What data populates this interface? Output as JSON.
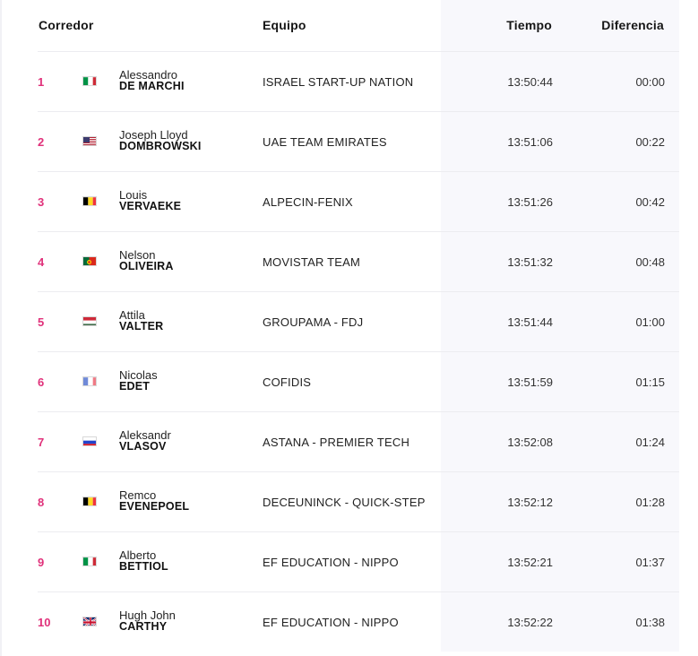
{
  "header": {
    "rider": "Corredor",
    "team": "Equipo",
    "time": "Tiempo",
    "gap": "Diferencia"
  },
  "colors": {
    "position": "#e0317a",
    "time_column_bg": "#f8f8fc"
  },
  "rows": [
    {
      "pos": "1",
      "flag": "italy-flag-icon",
      "first": "Alessandro",
      "last": "DE MARCHI",
      "team": "ISRAEL START-UP NATION",
      "time": "13:50:44",
      "gap": "00:00"
    },
    {
      "pos": "2",
      "flag": "usa-flag-icon",
      "first": "Joseph Lloyd",
      "last": "DOMBROWSKI",
      "team": "UAE TEAM EMIRATES",
      "time": "13:51:06",
      "gap": "00:22"
    },
    {
      "pos": "3",
      "flag": "belgium-flag-icon",
      "first": "Louis",
      "last": "VERVAEKE",
      "team": "ALPECIN-FENIX",
      "time": "13:51:26",
      "gap": "00:42"
    },
    {
      "pos": "4",
      "flag": "portugal-flag-icon",
      "first": "Nelson",
      "last": "OLIVEIRA",
      "team": "MOVISTAR TEAM",
      "time": "13:51:32",
      "gap": "00:48"
    },
    {
      "pos": "5",
      "flag": "hungary-flag-icon",
      "first": "Attila",
      "last": "VALTER",
      "team": "GROUPAMA - FDJ",
      "time": "13:51:44",
      "gap": "01:00"
    },
    {
      "pos": "6",
      "flag": "france-flag-icon",
      "first": "Nicolas",
      "last": "EDET",
      "team": "COFIDIS",
      "time": "13:51:59",
      "gap": "01:15"
    },
    {
      "pos": "7",
      "flag": "russia-flag-icon",
      "first": "Aleksandr",
      "last": "VLASOV",
      "team": "ASTANA - PREMIER TECH",
      "time": "13:52:08",
      "gap": "01:24"
    },
    {
      "pos": "8",
      "flag": "belgium-flag-icon",
      "first": "Remco",
      "last": "EVENEPOEL",
      "team": "DECEUNINCK - QUICK-STEP",
      "time": "13:52:12",
      "gap": "01:28"
    },
    {
      "pos": "9",
      "flag": "italy-flag-icon",
      "first": "Alberto",
      "last": "BETTIOL",
      "team": "EF EDUCATION - NIPPO",
      "time": "13:52:21",
      "gap": "01:37"
    },
    {
      "pos": "10",
      "flag": "uk-flag-icon",
      "first": "Hugh John",
      "last": "CARTHY",
      "team": "EF EDUCATION - NIPPO",
      "time": "13:52:22",
      "gap": "01:38"
    }
  ]
}
